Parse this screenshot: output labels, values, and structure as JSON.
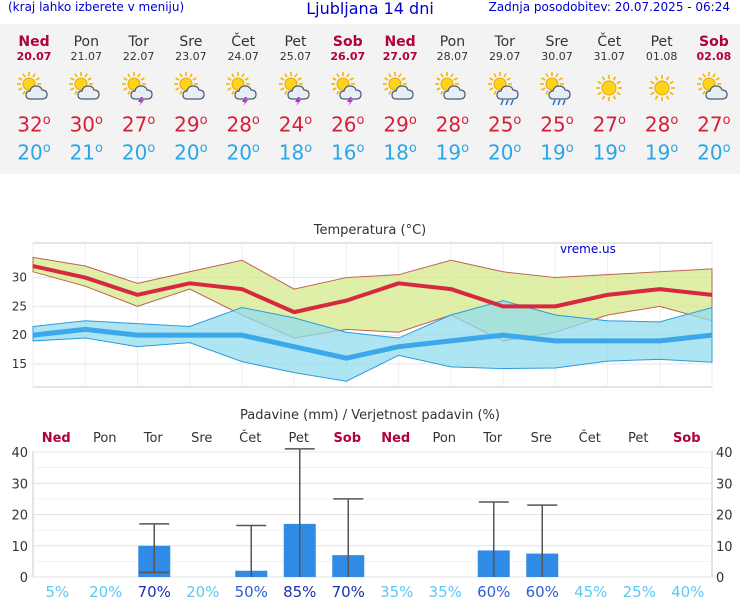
{
  "header": {
    "menu_hint": "(kraj lahko izberete v meniju)",
    "title": "Ljubljana 14 dni",
    "updated": "Zadnja posodobitev: 20.07.2025 - 06:24"
  },
  "days": [
    {
      "name": "Ned",
      "date": "20.07",
      "tmax": "32",
      "tmin": "20",
      "icon": "sun-cloud-icon",
      "weekend": true
    },
    {
      "name": "Pon",
      "date": "21.07",
      "tmax": "30",
      "tmin": "21",
      "icon": "sun-cloud-icon",
      "weekend": false
    },
    {
      "name": "Tor",
      "date": "22.07",
      "tmax": "27",
      "tmin": "20",
      "icon": "sun-cloud-storm-icon",
      "weekend": false
    },
    {
      "name": "Sre",
      "date": "23.07",
      "tmax": "29",
      "tmin": "20",
      "icon": "sun-cloud-icon",
      "weekend": false
    },
    {
      "name": "Čet",
      "date": "24.07",
      "tmax": "28",
      "tmin": "20",
      "icon": "sun-cloud-storm-icon",
      "weekend": false
    },
    {
      "name": "Pet",
      "date": "25.07",
      "tmax": "24",
      "tmin": "18",
      "icon": "sun-cloud-storm-icon",
      "weekend": false
    },
    {
      "name": "Sob",
      "date": "26.07",
      "tmax": "26",
      "tmin": "16",
      "icon": "sun-cloud-storm-icon",
      "weekend": true
    },
    {
      "name": "Ned",
      "date": "27.07",
      "tmax": "29",
      "tmin": "18",
      "icon": "sun-cloud-icon",
      "weekend": true
    },
    {
      "name": "Pon",
      "date": "28.07",
      "tmax": "28",
      "tmin": "19",
      "icon": "sun-cloud-icon",
      "weekend": false
    },
    {
      "name": "Tor",
      "date": "29.07",
      "tmax": "25",
      "tmin": "20",
      "icon": "sun-cloud-rain-icon",
      "weekend": false
    },
    {
      "name": "Sre",
      "date": "30.07",
      "tmax": "25",
      "tmin": "19",
      "icon": "sun-cloud-rain-icon",
      "weekend": false
    },
    {
      "name": "Čet",
      "date": "31.07",
      "tmax": "27",
      "tmin": "19",
      "icon": "sun-icon",
      "weekend": false
    },
    {
      "name": "Pet",
      "date": "01.08",
      "tmax": "28",
      "tmin": "19",
      "icon": "sun-icon",
      "weekend": false
    },
    {
      "name": "Sob",
      "date": "02.08",
      "tmax": "27",
      "tmin": "20",
      "icon": "sun-cloud-icon",
      "weekend": true
    }
  ],
  "colors": {
    "tmax": "#d6203a",
    "tmin": "#2aa6e6",
    "weekend": "#b00040",
    "bar": "#2f8be6",
    "max_band": "#d4ea8a",
    "min_band": "#93dcee"
  },
  "chart_data": [
    {
      "type": "line",
      "title": "Temperatura (°C)",
      "watermark": "vreme.us",
      "ylim": [
        11,
        36
      ],
      "yticks": [
        15,
        20,
        25,
        30
      ],
      "x": [
        "20.07",
        "21.07",
        "22.07",
        "23.07",
        "24.07",
        "25.07",
        "26.07",
        "27.07",
        "28.07",
        "29.07",
        "30.07",
        "31.07",
        "01.08",
        "02.08"
      ],
      "series": [
        {
          "role": "tmax",
          "values": [
            32,
            30,
            27,
            29,
            28,
            24,
            26,
            29,
            28,
            25,
            25,
            27,
            28,
            27
          ]
        },
        {
          "role": "tmax_upper",
          "values": [
            33.5,
            32,
            29,
            31,
            33,
            28,
            30,
            30.5,
            33,
            31,
            30,
            30.5,
            31,
            31.5
          ]
        },
        {
          "role": "tmax_lower",
          "values": [
            31,
            28.5,
            25,
            28,
            23.5,
            19.5,
            21,
            20.5,
            23.5,
            19,
            20.5,
            23.5,
            25,
            22.5
          ]
        },
        {
          "role": "tmin",
          "values": [
            20,
            21,
            20,
            20,
            20,
            18,
            16,
            18,
            19,
            20,
            19,
            19,
            19,
            20
          ]
        },
        {
          "role": "tmin_upper",
          "values": [
            21.5,
            22.5,
            22,
            21.5,
            24.8,
            23,
            20.5,
            19.5,
            23.5,
            26,
            23.5,
            22.5,
            22.3,
            24.8
          ]
        },
        {
          "role": "tmin_lower",
          "values": [
            19,
            19.5,
            18,
            18.7,
            15.4,
            13.5,
            12,
            16.5,
            14.5,
            14.2,
            14.3,
            15.5,
            15.8,
            15.3
          ]
        }
      ]
    },
    {
      "type": "bar",
      "title": "Padavine (mm) / Verjetnost padavin (%)",
      "ylim": [
        0,
        40
      ],
      "yticks": [
        0,
        10,
        20,
        30,
        40
      ],
      "day_labels": [
        "Ned",
        "Pon",
        "Tor",
        "Sre",
        "Čet",
        "Pet",
        "Sob",
        "Ned",
        "Pon",
        "Tor",
        "Sre",
        "Čet",
        "Pet",
        "Sob"
      ],
      "values": [
        0,
        0,
        10,
        0,
        2,
        17,
        7,
        0,
        0,
        8.5,
        7.5,
        0,
        0,
        0
      ],
      "err_high": [
        0,
        0,
        17,
        0,
        16.5,
        41,
        25,
        0,
        0,
        24,
        23,
        0,
        0,
        0
      ],
      "err_low": [
        0,
        0,
        1.5,
        0,
        0,
        0,
        0,
        0,
        0,
        0,
        0,
        0,
        0,
        0
      ],
      "probability": [
        "5%",
        "20%",
        "70%",
        "20%",
        "50%",
        "85%",
        "70%",
        "35%",
        "35%",
        "60%",
        "60%",
        "45%",
        "25%",
        "40%"
      ]
    }
  ]
}
